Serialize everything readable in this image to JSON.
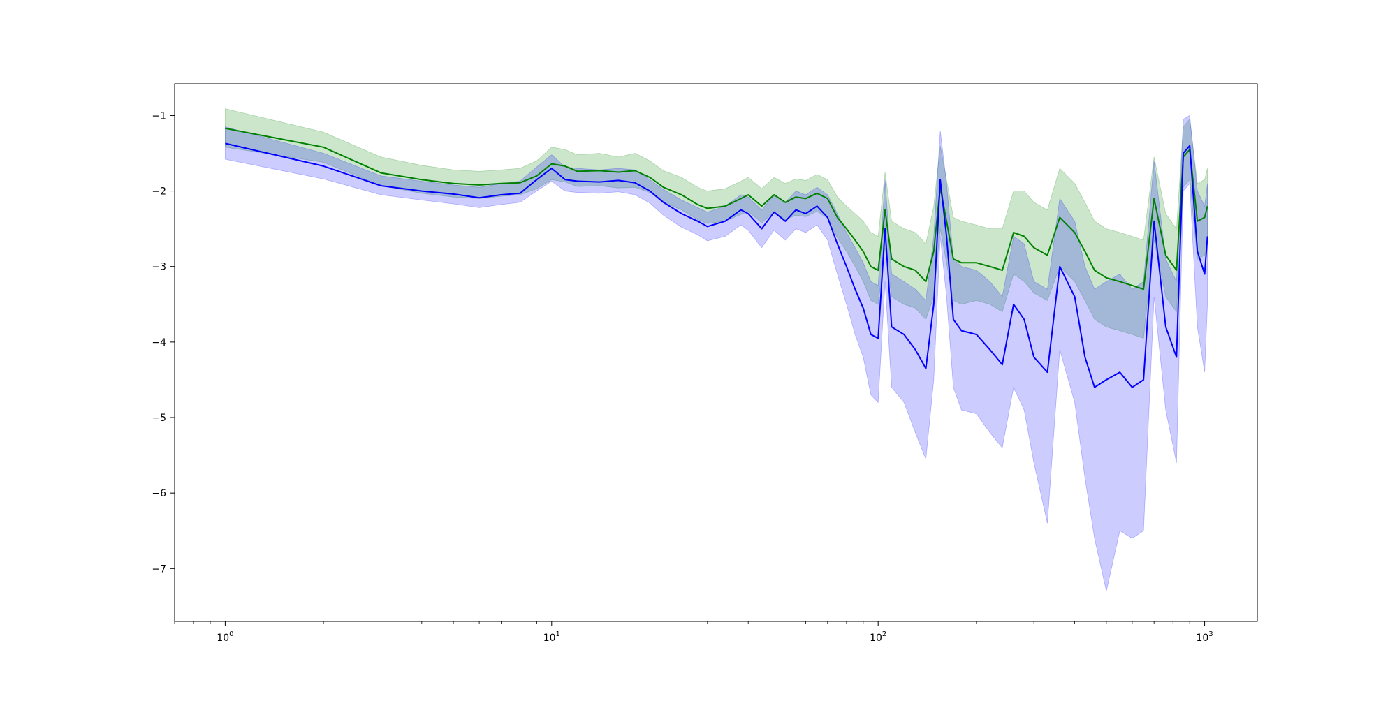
{
  "chart_data": {
    "type": "line",
    "title": "",
    "xlabel": "",
    "ylabel": "",
    "xscale": "log",
    "xlim": [
      0.7,
      1450
    ],
    "ylim": [
      -7.7,
      -0.58
    ],
    "grid": false,
    "x_ticks": [
      {
        "value": 1,
        "base": "10",
        "exp": "0"
      },
      {
        "value": 10,
        "base": "10",
        "exp": "1"
      },
      {
        "value": 100,
        "base": "10",
        "exp": "2"
      },
      {
        "value": 1000,
        "base": "10",
        "exp": "3"
      }
    ],
    "y_ticks": [
      {
        "value": -1,
        "label": "−1"
      },
      {
        "value": -2,
        "label": "−2"
      },
      {
        "value": -3,
        "label": "−3"
      },
      {
        "value": -4,
        "label": "−4"
      },
      {
        "value": -5,
        "label": "−5"
      },
      {
        "value": -6,
        "label": "−6"
      },
      {
        "value": -7,
        "label": "−7"
      }
    ],
    "series": [
      {
        "color": "#008000",
        "band_color": "#008000",
        "band_opacity": 0.2,
        "points": [
          [
            1,
            -1.17,
            -0.91,
            -1.42
          ],
          [
            2,
            -1.42,
            -1.22,
            -1.62
          ],
          [
            3,
            -1.76,
            -1.55,
            -1.93
          ],
          [
            4,
            -1.85,
            -1.66,
            -2.03
          ],
          [
            5,
            -1.9,
            -1.72,
            -2.08
          ],
          [
            6,
            -1.92,
            -1.74,
            -2.1
          ],
          [
            7,
            -1.9,
            -1.72,
            -2.07
          ],
          [
            8,
            -1.89,
            -1.7,
            -2.05
          ],
          [
            9,
            -1.8,
            -1.6,
            -1.97
          ],
          [
            10,
            -1.64,
            -1.42,
            -1.85
          ],
          [
            11,
            -1.67,
            -1.45,
            -1.88
          ],
          [
            12,
            -1.74,
            -1.52,
            -1.94
          ],
          [
            14,
            -1.73,
            -1.5,
            -1.93
          ],
          [
            16,
            -1.75,
            -1.55,
            -1.96
          ],
          [
            18,
            -1.73,
            -1.5,
            -1.95
          ],
          [
            20,
            -1.82,
            -1.6,
            -2.02
          ],
          [
            22,
            -1.95,
            -1.73,
            -2.15
          ],
          [
            25,
            -2.05,
            -1.82,
            -2.25
          ],
          [
            28,
            -2.18,
            -1.95,
            -2.38
          ],
          [
            30,
            -2.23,
            -2.0,
            -2.43
          ],
          [
            34,
            -2.2,
            -1.97,
            -2.4
          ],
          [
            38,
            -2.1,
            -1.87,
            -2.31
          ],
          [
            40,
            -2.05,
            -1.82,
            -2.27
          ],
          [
            44,
            -2.2,
            -1.97,
            -2.42
          ],
          [
            48,
            -2.05,
            -1.82,
            -2.28
          ],
          [
            52,
            -2.15,
            -1.9,
            -2.38
          ],
          [
            56,
            -2.08,
            -1.84,
            -2.32
          ],
          [
            60,
            -2.1,
            -1.86,
            -2.34
          ],
          [
            65,
            -2.03,
            -1.78,
            -2.27
          ],
          [
            70,
            -2.1,
            -1.85,
            -2.36
          ],
          [
            75,
            -2.35,
            -2.08,
            -2.62
          ],
          [
            80,
            -2.5,
            -2.2,
            -2.8
          ],
          [
            85,
            -2.65,
            -2.3,
            -3.0
          ],
          [
            90,
            -2.8,
            -2.4,
            -3.2
          ],
          [
            95,
            -3.0,
            -2.55,
            -3.45
          ],
          [
            100,
            -3.05,
            -2.6,
            -3.5
          ],
          [
            105,
            -2.25,
            -1.75,
            -2.75
          ],
          [
            110,
            -2.9,
            -2.4,
            -3.4
          ],
          [
            120,
            -3.0,
            -2.5,
            -3.5
          ],
          [
            130,
            -3.05,
            -2.55,
            -3.55
          ],
          [
            140,
            -3.2,
            -2.7,
            -3.7
          ],
          [
            148,
            -2.8,
            -2.2,
            -3.4
          ],
          [
            155,
            -1.95,
            -1.4,
            -2.5
          ],
          [
            162,
            -2.4,
            -1.85,
            -2.95
          ],
          [
            170,
            -2.9,
            -2.35,
            -3.45
          ],
          [
            180,
            -2.95,
            -2.4,
            -3.5
          ],
          [
            200,
            -2.95,
            -2.45,
            -3.45
          ],
          [
            220,
            -3.0,
            -2.5,
            -3.5
          ],
          [
            240,
            -3.05,
            -2.5,
            -3.6
          ],
          [
            260,
            -2.55,
            -2.0,
            -3.1
          ],
          [
            280,
            -2.6,
            -2.0,
            -3.2
          ],
          [
            300,
            -2.75,
            -2.15,
            -3.35
          ],
          [
            330,
            -2.85,
            -2.25,
            -3.45
          ],
          [
            360,
            -2.35,
            -1.7,
            -3.0
          ],
          [
            400,
            -2.55,
            -1.9,
            -3.2
          ],
          [
            430,
            -2.8,
            -2.15,
            -3.45
          ],
          [
            460,
            -3.05,
            -2.4,
            -3.7
          ],
          [
            500,
            -3.15,
            -2.5,
            -3.8
          ],
          [
            550,
            -3.2,
            -2.55,
            -3.85
          ],
          [
            600,
            -3.25,
            -2.6,
            -3.9
          ],
          [
            650,
            -3.3,
            -2.65,
            -3.95
          ],
          [
            700,
            -2.1,
            -1.55,
            -2.65
          ],
          [
            760,
            -2.85,
            -2.3,
            -3.4
          ],
          [
            820,
            -3.05,
            -2.5,
            -3.6
          ],
          [
            860,
            -1.55,
            -1.15,
            -1.95
          ],
          [
            900,
            -1.45,
            -1.05,
            -1.85
          ],
          [
            950,
            -2.4,
            -1.9,
            -2.9
          ],
          [
            1000,
            -2.35,
            -1.85,
            -2.85
          ],
          [
            1020,
            -2.2,
            -1.7,
            -2.7
          ]
        ]
      },
      {
        "color": "#0000ff",
        "band_color": "#0000ff",
        "band_opacity": 0.2,
        "points": [
          [
            1,
            -1.37,
            -1.15,
            -1.58
          ],
          [
            2,
            -1.67,
            -1.5,
            -1.84
          ],
          [
            3,
            -1.93,
            -1.8,
            -2.05
          ],
          [
            4,
            -2.0,
            -1.87,
            -2.12
          ],
          [
            5,
            -2.04,
            -1.92,
            -2.17
          ],
          [
            6,
            -2.09,
            -1.95,
            -2.22
          ],
          [
            7,
            -2.05,
            -1.9,
            -2.18
          ],
          [
            8,
            -2.03,
            -1.87,
            -2.15
          ],
          [
            9,
            -1.85,
            -1.68,
            -2.0
          ],
          [
            10,
            -1.7,
            -1.52,
            -1.87
          ],
          [
            11,
            -1.85,
            -1.68,
            -2.0
          ],
          [
            12,
            -1.87,
            -1.7,
            -2.02
          ],
          [
            14,
            -1.88,
            -1.72,
            -2.03
          ],
          [
            16,
            -1.86,
            -1.7,
            -2.01
          ],
          [
            18,
            -1.89,
            -1.72,
            -2.05
          ],
          [
            20,
            -2.0,
            -1.85,
            -2.16
          ],
          [
            22,
            -2.15,
            -1.98,
            -2.32
          ],
          [
            25,
            -2.3,
            -2.12,
            -2.48
          ],
          [
            28,
            -2.4,
            -2.22,
            -2.58
          ],
          [
            30,
            -2.47,
            -2.28,
            -2.66
          ],
          [
            34,
            -2.4,
            -2.2,
            -2.6
          ],
          [
            38,
            -2.25,
            -2.05,
            -2.45
          ],
          [
            40,
            -2.3,
            -2.08,
            -2.52
          ],
          [
            44,
            -2.5,
            -2.25,
            -2.75
          ],
          [
            48,
            -2.28,
            -2.05,
            -2.52
          ],
          [
            52,
            -2.4,
            -2.15,
            -2.65
          ],
          [
            56,
            -2.25,
            -2.0,
            -2.5
          ],
          [
            60,
            -2.3,
            -2.05,
            -2.55
          ],
          [
            65,
            -2.2,
            -1.95,
            -2.45
          ],
          [
            70,
            -2.35,
            -2.05,
            -2.65
          ],
          [
            75,
            -2.7,
            -2.3,
            -3.1
          ],
          [
            80,
            -3.0,
            -2.55,
            -3.5
          ],
          [
            85,
            -3.3,
            -2.75,
            -3.9
          ],
          [
            90,
            -3.55,
            -2.95,
            -4.2
          ],
          [
            95,
            -3.9,
            -3.2,
            -4.7
          ],
          [
            100,
            -3.95,
            -3.25,
            -4.8
          ],
          [
            105,
            -2.5,
            -1.85,
            -3.2
          ],
          [
            110,
            -3.8,
            -3.1,
            -4.6
          ],
          [
            120,
            -3.9,
            -3.2,
            -4.8
          ],
          [
            130,
            -4.1,
            -3.3,
            -5.2
          ],
          [
            140,
            -4.35,
            -3.45,
            -5.55
          ],
          [
            148,
            -3.5,
            -2.6,
            -4.5
          ],
          [
            155,
            -1.85,
            -1.2,
            -2.6
          ],
          [
            162,
            -2.6,
            -1.9,
            -3.4
          ],
          [
            170,
            -3.7,
            -2.9,
            -4.6
          ],
          [
            180,
            -3.85,
            -3.0,
            -4.9
          ],
          [
            200,
            -3.9,
            -3.05,
            -4.95
          ],
          [
            220,
            -4.1,
            -3.2,
            -5.2
          ],
          [
            240,
            -4.3,
            -3.4,
            -5.4
          ],
          [
            260,
            -3.5,
            -2.6,
            -4.6
          ],
          [
            280,
            -3.7,
            -2.7,
            -4.9
          ],
          [
            300,
            -4.2,
            -3.2,
            -5.6
          ],
          [
            330,
            -4.4,
            -3.3,
            -6.4
          ],
          [
            360,
            -3.0,
            -2.1,
            -4.1
          ],
          [
            400,
            -3.4,
            -2.4,
            -4.8
          ],
          [
            430,
            -4.2,
            -3.0,
            -5.8
          ],
          [
            460,
            -4.6,
            -3.3,
            -6.6
          ],
          [
            500,
            -4.5,
            -3.2,
            -7.3
          ],
          [
            550,
            -4.4,
            -3.1,
            -6.5
          ],
          [
            600,
            -4.6,
            -3.3,
            -6.6
          ],
          [
            650,
            -4.5,
            -3.2,
            -6.5
          ],
          [
            700,
            -2.4,
            -1.6,
            -3.4
          ],
          [
            760,
            -3.8,
            -2.9,
            -4.9
          ],
          [
            820,
            -4.2,
            -3.2,
            -5.6
          ],
          [
            860,
            -1.5,
            -1.05,
            -2.0
          ],
          [
            900,
            -1.4,
            -1.0,
            -1.9
          ],
          [
            950,
            -2.8,
            -2.0,
            -3.8
          ],
          [
            1000,
            -3.1,
            -2.2,
            -4.4
          ],
          [
            1020,
            -2.6,
            -1.9,
            -3.5
          ]
        ]
      }
    ]
  }
}
